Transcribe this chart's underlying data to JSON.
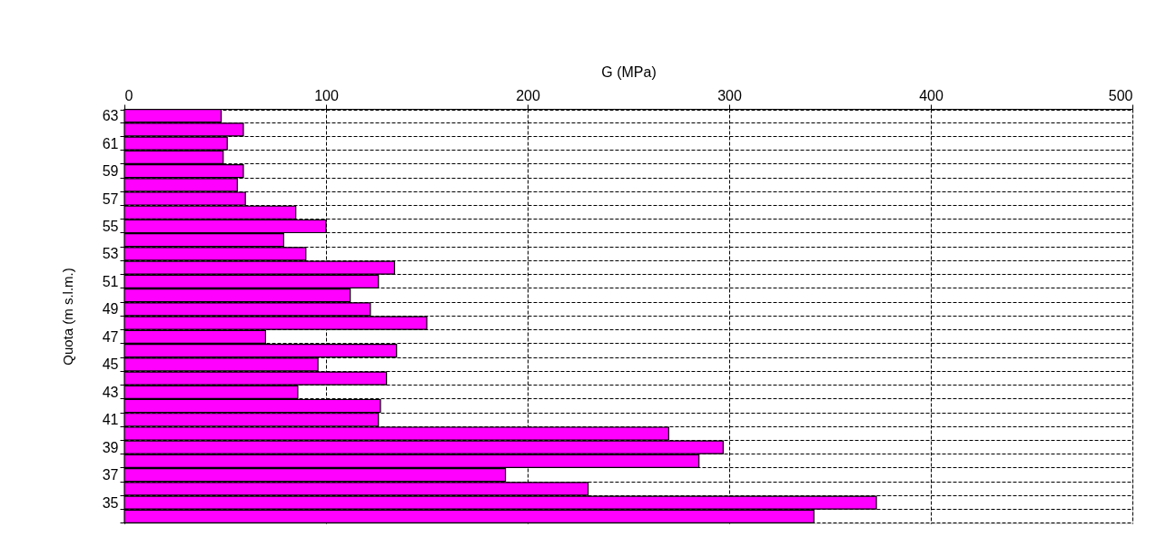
{
  "chart_data": {
    "type": "bar",
    "orientation": "horizontal",
    "xlabel": "G (MPa)",
    "ylabel": "Quota (m s.l.m.)",
    "categories": [
      "63",
      null,
      "61",
      null,
      "59",
      null,
      "57",
      null,
      "55",
      null,
      "53",
      null,
      "51",
      null,
      "49",
      null,
      "47",
      null,
      "45",
      null,
      "43",
      null,
      "41",
      null,
      "39",
      null,
      "37",
      null,
      "35",
      null
    ],
    "values": [
      48,
      59,
      51,
      49,
      59,
      56,
      60,
      85,
      100,
      79,
      90,
      134,
      126,
      112,
      122,
      150,
      70,
      135,
      96,
      130,
      86,
      127,
      126,
      270,
      297,
      285,
      189,
      230,
      373,
      342
    ],
    "color": "#ff00ff",
    "xlim": [
      0,
      500
    ],
    "xticks": [
      0,
      100,
      200,
      300,
      400,
      500
    ],
    "grid": true
  }
}
